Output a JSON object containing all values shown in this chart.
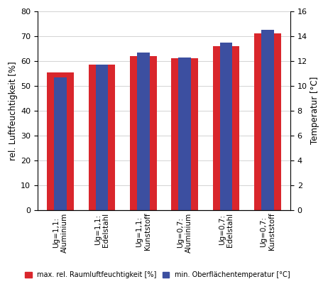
{
  "categories": [
    "Ug=1,1:\nAluminium",
    "Ug=1,1:\nEdelstahl",
    "Ug=1,1:\nKunststoff",
    "Ug=0,7:\nAluminium",
    "Ug=0,7:\nEdelstahl",
    "Ug=0,7:\nKunststoff"
  ],
  "red_values": [
    55.5,
    58.5,
    62.0,
    61.0,
    66.0,
    71.0
  ],
  "blue_values": [
    53.5,
    58.5,
    63.5,
    61.5,
    67.5,
    72.5
  ],
  "red_color": "#d9262c",
  "blue_color": "#3c4fa0",
  "ylabel_left": "rel. Luftfeuchtigkeit [%]",
  "ylabel_right": "Temperatur [°C]",
  "ylim_left": [
    0,
    80
  ],
  "ylim_right": [
    0,
    16
  ],
  "yticks_left": [
    0,
    10,
    20,
    30,
    40,
    50,
    60,
    70,
    80
  ],
  "yticks_right": [
    0,
    2,
    4,
    6,
    8,
    10,
    12,
    14,
    16
  ],
  "legend_red": "max. rel. Raumluftfeuchtigkeit [%]",
  "legend_blue": "min. Oberflächentemperatur [°C]",
  "red_bar_width": 0.65,
  "blue_bar_width": 0.3,
  "background_color": "#ffffff",
  "grid_color": "#cccccc"
}
